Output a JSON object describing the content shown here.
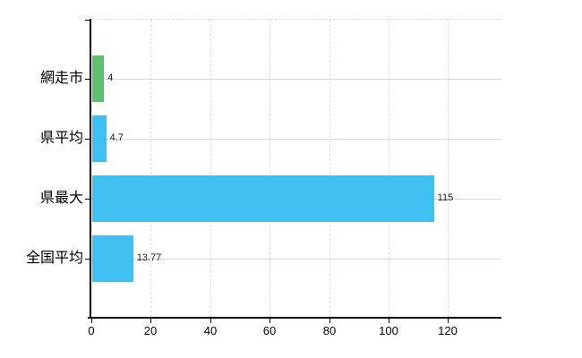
{
  "chart_data": {
    "type": "bar",
    "orientation": "horizontal",
    "title": "",
    "legend": false,
    "grid": true,
    "categories": [
      "網走市",
      "県平均",
      "県最大",
      "全国平均"
    ],
    "values": [
      4,
      4.7,
      115,
      13.77
    ],
    "value_labels": [
      "4",
      "4.7",
      "115",
      "13.77"
    ],
    "bar_colors": [
      "#5fc170",
      "#3ec1f0",
      "#3ec1f0",
      "#3ec1f0"
    ],
    "x_ticks": [
      0,
      20,
      40,
      60,
      80,
      100,
      120
    ],
    "x_tick_labels": [
      "0",
      "20",
      "40",
      "60",
      "80",
      "100",
      "120"
    ],
    "xlim": [
      0,
      138
    ],
    "colors": {
      "axis": "#000000",
      "grid_horizontal": "#d2d9d2",
      "grid_vertical": "#dcdcdc",
      "plot_border_dashed": "#dcdcdc",
      "text": "#000000"
    }
  }
}
